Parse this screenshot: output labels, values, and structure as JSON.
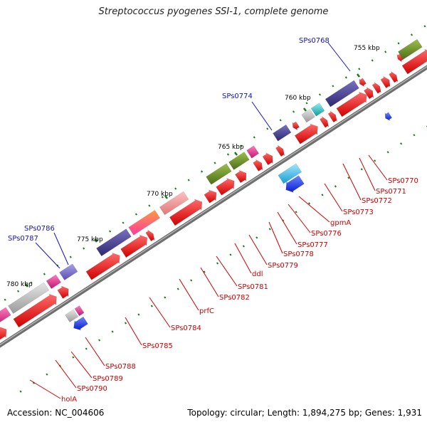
{
  "title": "Streptococcus pyogenes SSI-1, complete genome",
  "accession": "Accession: NC_004606",
  "topology": "Topology: circular; Length: 1,894,275 bp; Genes: 1,931",
  "kbp_labels": [
    "755 kbp",
    "760 kbp",
    "765 kbp",
    "770 kbp",
    "775 kbp",
    "780 kbp"
  ],
  "gene_labels_blue": [
    "SPs0768",
    "SPs0774",
    "SPs0786",
    "SPs0787"
  ],
  "gene_labels_red": [
    "SPs0770",
    "SPs0771",
    "SPs0772",
    "SPs0773",
    "gpmA",
    "SPs0776",
    "SPs0777",
    "SPs0778",
    "SPs0779",
    "ddl",
    "SPs0781",
    "SPs0782",
    "prfC",
    "SPs0784",
    "SPs0785",
    "SPs0788",
    "SPs0789",
    "SPs0790",
    "holA"
  ],
  "colors": {
    "forward_gene": "#ee1111",
    "backbone": "#777777",
    "label_red": "#cc0000",
    "label_blue": "#1111cc",
    "tick": "#1a7a1a",
    "cog_purple": "#4a3f8c",
    "cog_olive": "#6b8e23",
    "cog_pink": "#e8358f",
    "cog_grey": "#bbbbbb",
    "cog_cyan": "#22cccc",
    "cog_blue": "#1133ee"
  }
}
